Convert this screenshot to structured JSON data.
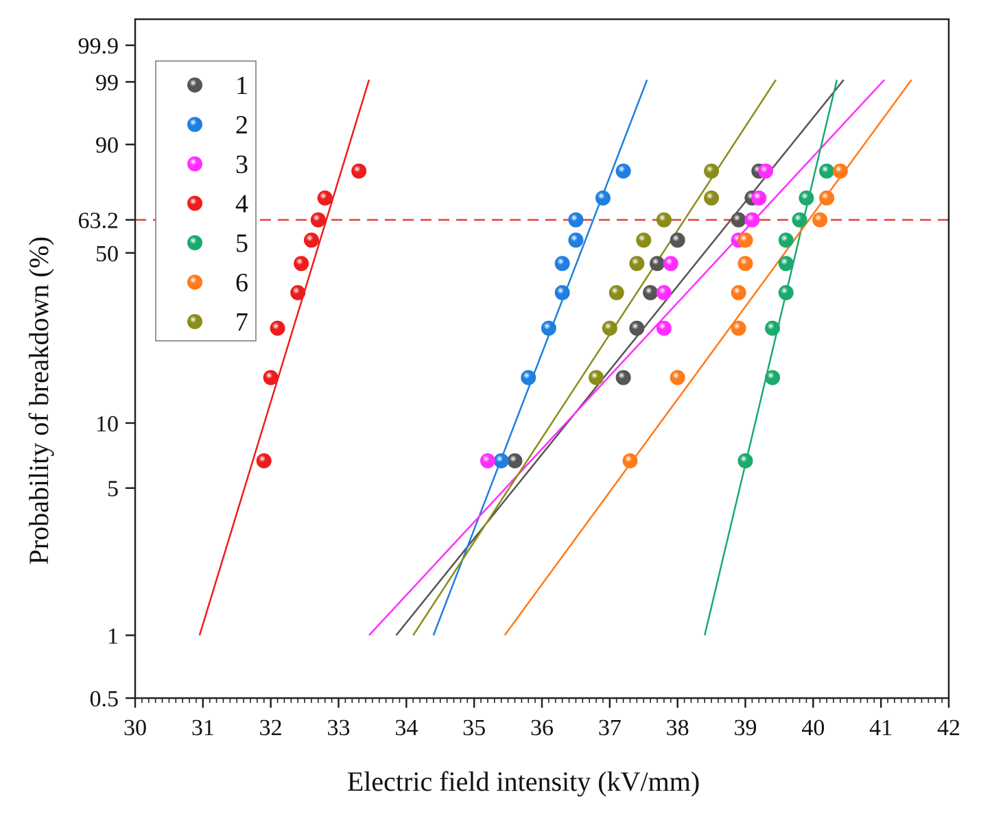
{
  "chart_data": {
    "type": "scatter",
    "subtype": "weibull-probability-plot",
    "title": "",
    "xlabel": "Electric field intensity (kV/mm)",
    "ylabel": "Probability of breakdown (%)",
    "xlim": [
      30,
      42
    ],
    "ylim": [
      0.5,
      99.9
    ],
    "x_ticks": [
      "30",
      "31",
      "32",
      "33",
      "34",
      "35",
      "36",
      "37",
      "38",
      "39",
      "40",
      "41",
      "42"
    ],
    "y_ticks": [
      {
        "value": 0.5,
        "label": "0.5"
      },
      {
        "value": 1,
        "label": "1"
      },
      {
        "value": 5,
        "label": "5"
      },
      {
        "value": 10,
        "label": "10"
      },
      {
        "value": 50,
        "label": "50"
      },
      {
        "value": 63.2,
        "label": "63.2"
      },
      {
        "value": 90,
        "label": "90"
      },
      {
        "value": 99,
        "label": "99"
      },
      {
        "value": 99.9,
        "label": "99.9"
      }
    ],
    "reference_line": {
      "y": 63.2,
      "color": "#e8413a",
      "style": "dashed"
    },
    "legend_position": "top-left",
    "series": [
      {
        "name": "1",
        "color": "#555555",
        "points": [
          [
            35.6,
            6.7
          ],
          [
            37.2,
            16
          ],
          [
            37.4,
            26
          ],
          [
            37.6,
            36
          ],
          [
            37.7,
            46
          ],
          [
            38.0,
            55
          ],
          [
            38.9,
            63.2
          ],
          [
            39.1,
            72
          ],
          [
            39.2,
            82
          ]
        ],
        "fit": {
          "x_start": 33.85,
          "p_start": 1,
          "x_end": 40.45,
          "p_end": 99.1
        }
      },
      {
        "name": "2",
        "color": "#1f7fe0",
        "points": [
          [
            35.4,
            6.7
          ],
          [
            35.8,
            16
          ],
          [
            36.1,
            26
          ],
          [
            36.3,
            36
          ],
          [
            36.3,
            46
          ],
          [
            36.5,
            55
          ],
          [
            36.5,
            63.2
          ],
          [
            36.9,
            72
          ],
          [
            37.2,
            82
          ]
        ],
        "fit": {
          "x_start": 34.4,
          "p_start": 1,
          "x_end": 37.55,
          "p_end": 99.1
        }
      },
      {
        "name": "3",
        "color": "#ff2eff",
        "points": [
          [
            35.2,
            6.7
          ],
          [
            37.8,
            26
          ],
          [
            37.8,
            36
          ],
          [
            37.9,
            46
          ],
          [
            38.9,
            55
          ],
          [
            39.1,
            63.2
          ],
          [
            39.2,
            72
          ],
          [
            39.3,
            82
          ]
        ],
        "fit": {
          "x_start": 33.45,
          "p_start": 1,
          "x_end": 41.05,
          "p_end": 99.1
        }
      },
      {
        "name": "4",
        "color": "#ee1c1c",
        "points": [
          [
            31.9,
            6.7
          ],
          [
            32.0,
            16
          ],
          [
            32.1,
            26
          ],
          [
            32.4,
            36
          ],
          [
            32.45,
            46
          ],
          [
            32.6,
            55
          ],
          [
            32.7,
            63.2
          ],
          [
            32.8,
            72
          ],
          [
            33.3,
            82
          ]
        ],
        "fit": {
          "x_start": 30.95,
          "p_start": 1,
          "x_end": 33.45,
          "p_end": 99.1
        }
      },
      {
        "name": "5",
        "color": "#1aaa6e",
        "points": [
          [
            39.0,
            6.7
          ],
          [
            39.4,
            16
          ],
          [
            39.4,
            26
          ],
          [
            39.6,
            36
          ],
          [
            39.6,
            46
          ],
          [
            39.6,
            55
          ],
          [
            39.8,
            63.2
          ],
          [
            39.9,
            72
          ],
          [
            40.2,
            82
          ]
        ],
        "fit": {
          "x_start": 38.4,
          "p_start": 1,
          "x_end": 40.35,
          "p_end": 99.1
        }
      },
      {
        "name": "6",
        "color": "#ff7a1a",
        "points": [
          [
            37.3,
            6.7
          ],
          [
            38.0,
            16
          ],
          [
            38.9,
            26
          ],
          [
            38.9,
            36
          ],
          [
            39.0,
            46
          ],
          [
            39.0,
            55
          ],
          [
            40.1,
            63.2
          ],
          [
            40.2,
            72
          ],
          [
            40.4,
            82
          ]
        ],
        "fit": {
          "x_start": 35.45,
          "p_start": 1,
          "x_end": 41.45,
          "p_end": 99.1
        }
      },
      {
        "name": "7",
        "color": "#8c8c1a",
        "points": [
          [
            36.8,
            16
          ],
          [
            37.0,
            26
          ],
          [
            37.1,
            36
          ],
          [
            37.4,
            46
          ],
          [
            37.5,
            55
          ],
          [
            37.8,
            63.2
          ],
          [
            38.5,
            72
          ],
          [
            38.5,
            82
          ]
        ],
        "fit": {
          "x_start": 34.1,
          "p_start": 1,
          "x_end": 39.45,
          "p_end": 99.1
        }
      }
    ]
  }
}
